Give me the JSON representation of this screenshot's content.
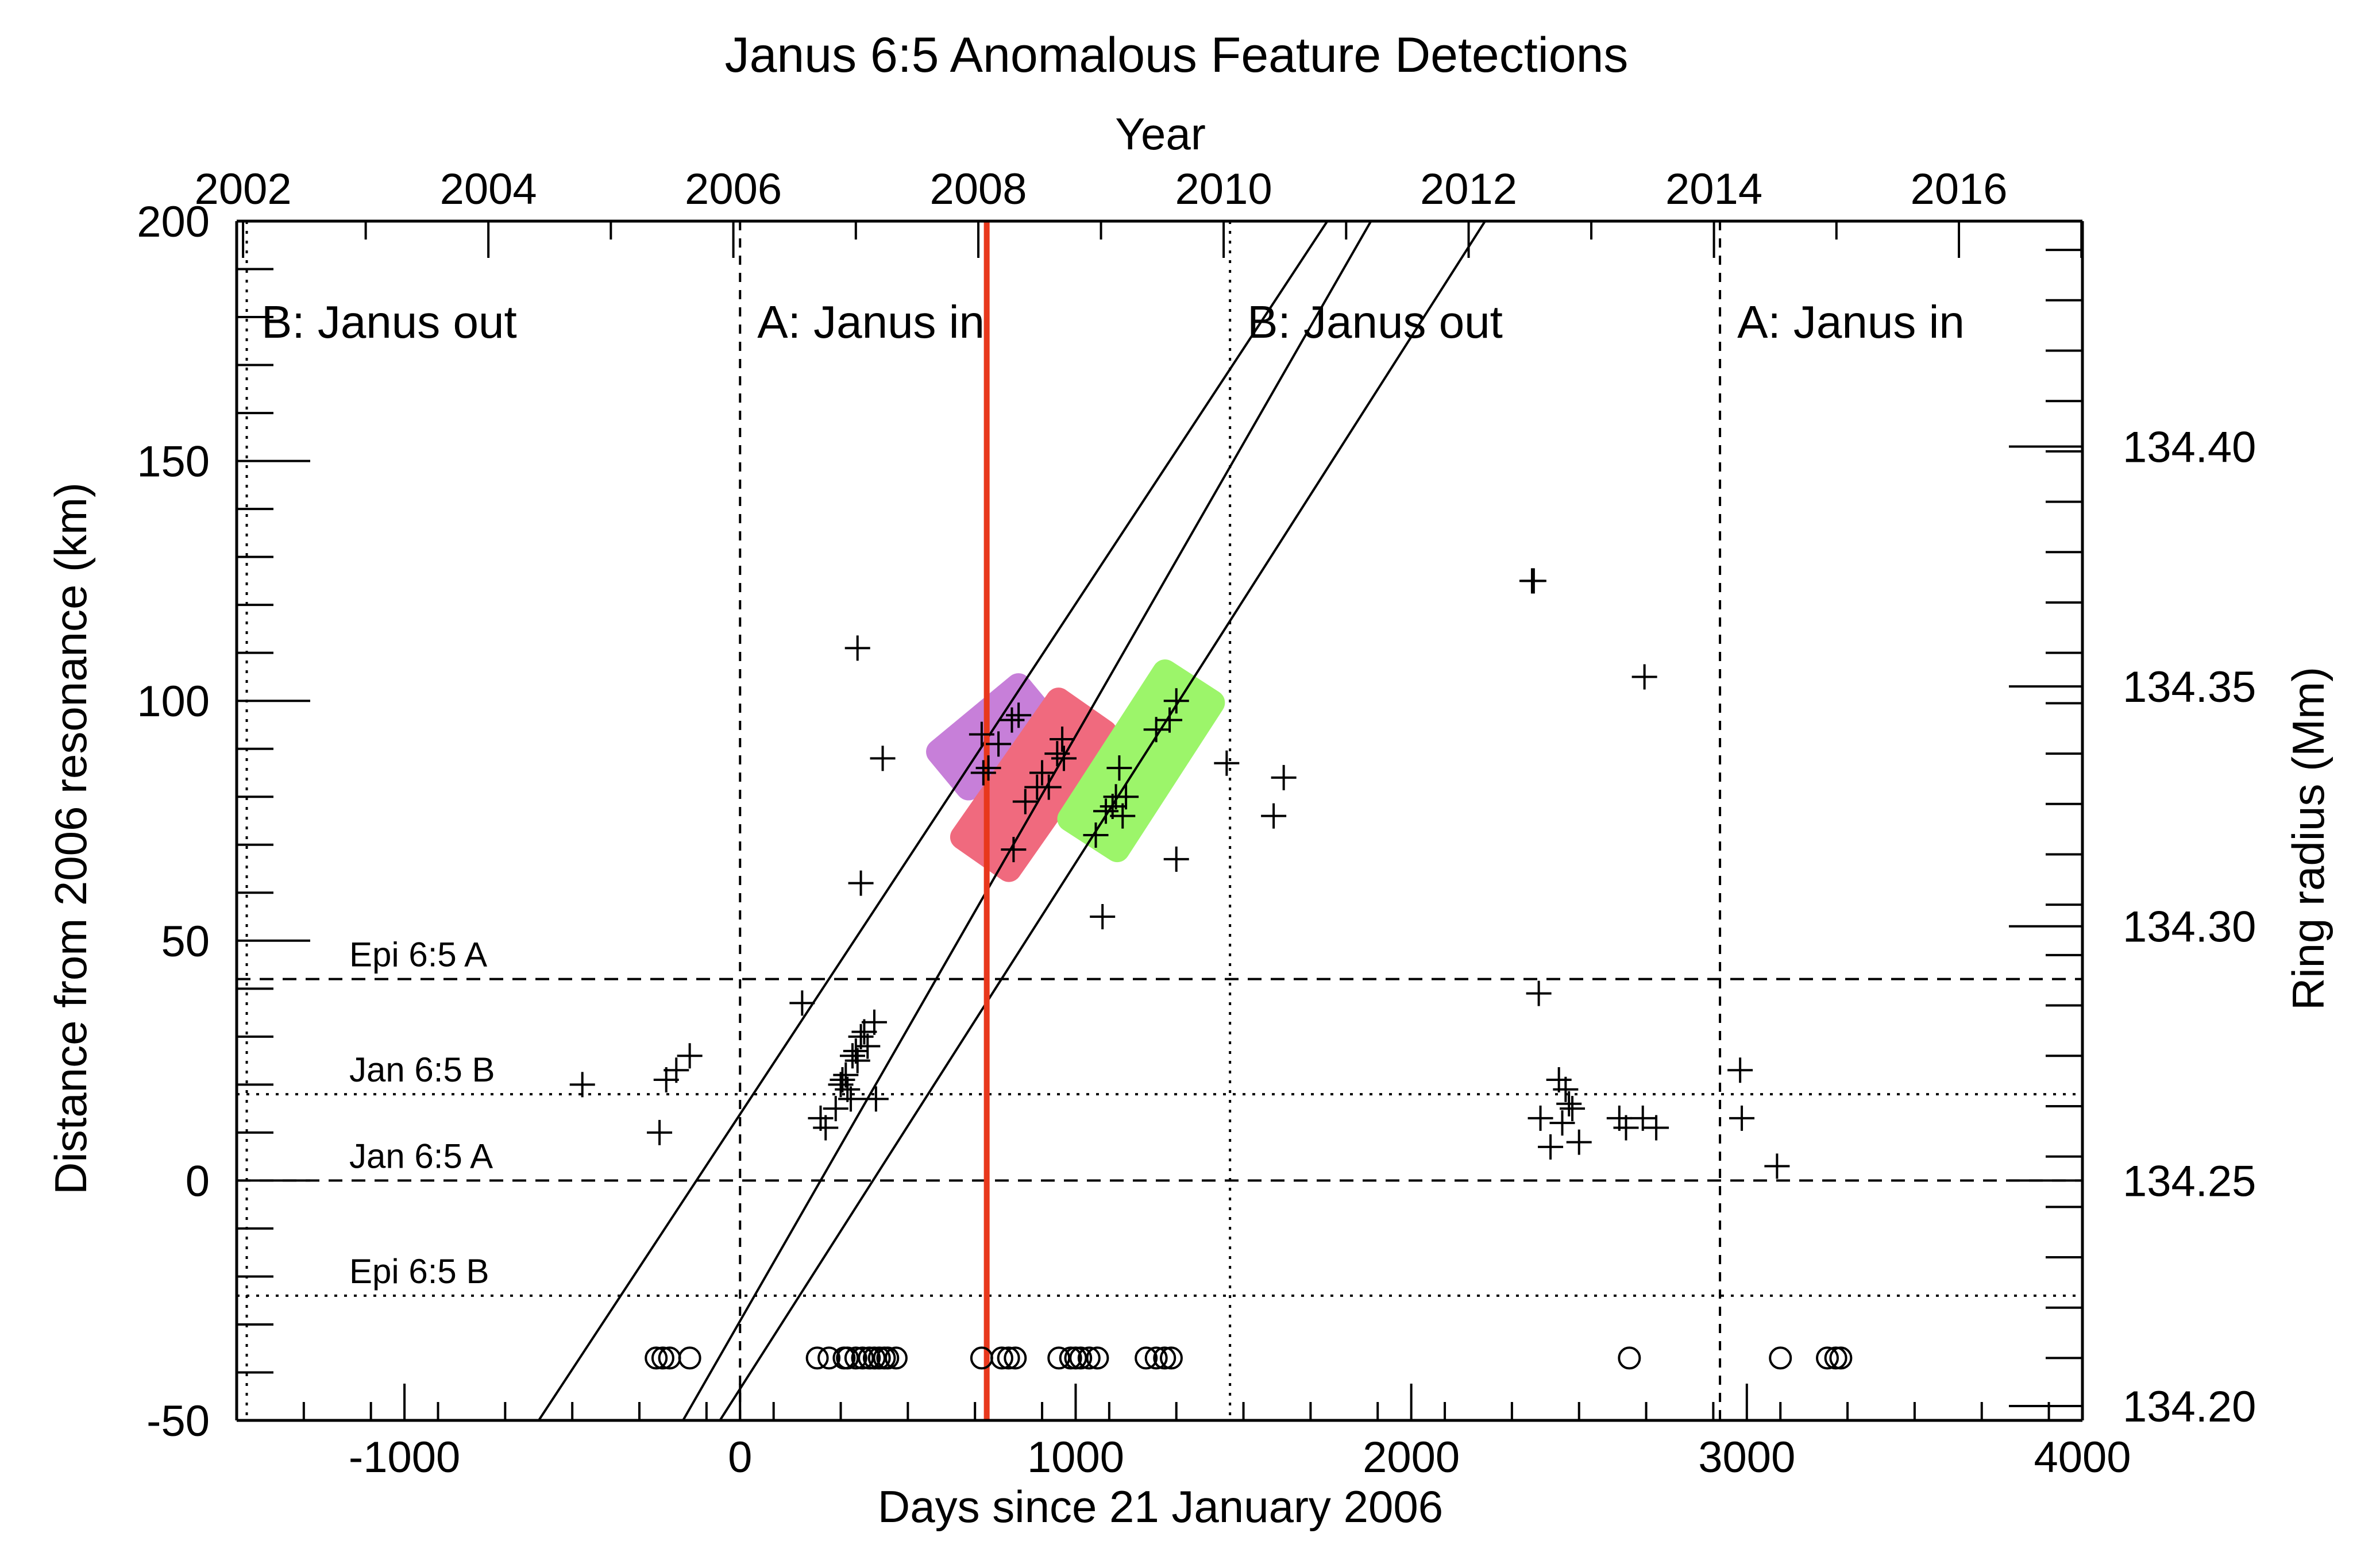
{
  "chart_data": {
    "type": "scatter",
    "title": "Janus 6:5 Anomalous Feature Detections",
    "xlabel": "Days since 21 January 2006",
    "ylabel": "Distance from 2006 resonance (km)",
    "x2label": "Year",
    "y2label": "Ring radius (Mm)",
    "xlim": [
      -1500,
      4000
    ],
    "ylim": [
      -50,
      200
    ],
    "x_ticks": [
      -1000,
      0,
      1000,
      2000,
      3000,
      4000
    ],
    "x_tick_labels": [
      "-1000",
      "0",
      "1000",
      "2000",
      "3000",
      "4000"
    ],
    "y_ticks": [
      -50,
      0,
      50,
      100,
      150,
      200
    ],
    "y_tick_labels": [
      "-50",
      "0",
      "50",
      "100",
      "150",
      "200"
    ],
    "year_ticks": [
      {
        "label": "2002",
        "day": -1481
      },
      {
        "label": "2004",
        "day": -750
      },
      {
        "label": "2006",
        "day": -20
      },
      {
        "label": "2008",
        "day": 710
      },
      {
        "label": "2010",
        "day": 1441
      },
      {
        "label": "2012",
        "day": 2171
      },
      {
        "label": "2014",
        "day": 2902
      },
      {
        "label": "2016",
        "day": 3632
      }
    ],
    "radius_ticks": [
      {
        "label": "134.20",
        "km": -47
      },
      {
        "label": "134.25",
        "km": 0
      },
      {
        "label": "134.30",
        "km": 53
      },
      {
        "label": "134.35",
        "km": 103
      },
      {
        "label": "134.40",
        "km": 153
      }
    ],
    "phases": [
      {
        "label": "B: Janus out",
        "x_start": -1500
      },
      {
        "label": "A: Janus in",
        "x_start": 0
      },
      {
        "label": "B: Janus out",
        "x_start": 1460
      },
      {
        "label": "A: Janus in",
        "x_start": 2920
      }
    ],
    "phase_boundaries": [
      -1470,
      0,
      1460,
      2920
    ],
    "resonance_lines": [
      {
        "label": "Epi 6:5 A",
        "y": 42,
        "style": "dashed"
      },
      {
        "label": "Jan 6:5 B",
        "y": 18,
        "style": "dotted"
      },
      {
        "label": "Jan 6:5 A",
        "y": 0,
        "style": "dashed"
      },
      {
        "label": "Epi 6:5 B",
        "y": -24,
        "style": "dotted"
      }
    ],
    "marker_line": {
      "x": 735,
      "color": "#e8381c"
    },
    "diagonal_lines": [
      {
        "x1": -600,
        "y1": -50,
        "x2": 1750,
        "y2": 200
      },
      {
        "x1": -170,
        "y1": -50,
        "x2": 1880,
        "y2": 200
      },
      {
        "x1": -60,
        "y1": -50,
        "x2": 2220,
        "y2": 200
      }
    ],
    "highlight_boxes": [
      {
        "color": "#c77fd9",
        "x_from": 660,
        "y_from": 87,
        "x_to": 850,
        "y_to": 98,
        "width_km": 15
      },
      {
        "color": "#f06a7e",
        "x_from": 750,
        "y_from": 70,
        "x_to": 1000,
        "y_to": 95,
        "width_km": 17
      },
      {
        "color": "#9cf56a",
        "x_from": 1070,
        "y_from": 74,
        "x_to": 1320,
        "y_to": 101,
        "width_km": 17
      }
    ],
    "detections_plus": [
      [
        -470,
        20
      ],
      [
        -240,
        10
      ],
      [
        -220,
        21
      ],
      [
        -190,
        23
      ],
      [
        -150,
        26
      ],
      [
        185,
        37
      ],
      [
        240,
        13
      ],
      [
        255,
        11
      ],
      [
        285,
        15
      ],
      [
        300,
        20
      ],
      [
        305,
        21
      ],
      [
        315,
        22
      ],
      [
        320,
        19
      ],
      [
        330,
        17
      ],
      [
        335,
        26
      ],
      [
        345,
        27
      ],
      [
        350,
        25
      ],
      [
        360,
        30
      ],
      [
        370,
        31
      ],
      [
        380,
        28
      ],
      [
        400,
        33
      ],
      [
        405,
        17
      ],
      [
        350,
        111
      ],
      [
        360,
        62
      ],
      [
        425,
        88
      ],
      [
        720,
        93
      ],
      [
        725,
        85
      ],
      [
        740,
        86
      ],
      [
        770,
        91
      ],
      [
        810,
        96
      ],
      [
        830,
        97
      ],
      [
        815,
        69
      ],
      [
        850,
        79
      ],
      [
        885,
        82
      ],
      [
        900,
        85
      ],
      [
        920,
        82
      ],
      [
        945,
        89
      ],
      [
        960,
        92
      ],
      [
        965,
        88
      ],
      [
        1060,
        72
      ],
      [
        1080,
        55
      ],
      [
        1090,
        77
      ],
      [
        1110,
        78
      ],
      [
        1120,
        80
      ],
      [
        1130,
        86
      ],
      [
        1140,
        76
      ],
      [
        1150,
        80
      ],
      [
        1240,
        94
      ],
      [
        1280,
        96
      ],
      [
        1300,
        100
      ],
      [
        1300,
        67
      ],
      [
        1450,
        87
      ],
      [
        1590,
        76
      ],
      [
        1620,
        84
      ],
      [
        2360,
        125
      ],
      [
        2365,
        125
      ],
      [
        2380,
        39
      ],
      [
        2385,
        13
      ],
      [
        2415,
        7
      ],
      [
        2440,
        21
      ],
      [
        2450,
        12
      ],
      [
        2460,
        19
      ],
      [
        2470,
        16
      ],
      [
        2480,
        15
      ],
      [
        2500,
        8
      ],
      [
        2620,
        13
      ],
      [
        2640,
        11
      ],
      [
        2690,
        13
      ],
      [
        2730,
        11
      ],
      [
        2695,
        105
      ],
      [
        2980,
        23
      ],
      [
        2985,
        13
      ],
      [
        3090,
        3
      ]
    ],
    "detections_circle": [
      [
        -250,
        -37
      ],
      [
        -230,
        -37
      ],
      [
        -210,
        -37
      ],
      [
        -150,
        -37
      ],
      [
        230,
        -37
      ],
      [
        265,
        -37
      ],
      [
        310,
        -37
      ],
      [
        320,
        -37
      ],
      [
        345,
        -37
      ],
      [
        365,
        -37
      ],
      [
        385,
        -37
      ],
      [
        400,
        -37
      ],
      [
        415,
        -37
      ],
      [
        430,
        -37
      ],
      [
        440,
        -37
      ],
      [
        465,
        -37
      ],
      [
        720,
        -37
      ],
      [
        780,
        -37
      ],
      [
        800,
        -37
      ],
      [
        820,
        -37
      ],
      [
        950,
        -37
      ],
      [
        985,
        -37
      ],
      [
        1000,
        -37
      ],
      [
        1015,
        -37
      ],
      [
        1040,
        -37
      ],
      [
        1065,
        -37
      ],
      [
        1210,
        -37
      ],
      [
        1240,
        -37
      ],
      [
        1265,
        -37
      ],
      [
        1285,
        -37
      ],
      [
        2650,
        -37
      ],
      [
        3100,
        -37
      ],
      [
        3240,
        -37
      ],
      [
        3265,
        -37
      ],
      [
        3280,
        -37
      ]
    ]
  }
}
